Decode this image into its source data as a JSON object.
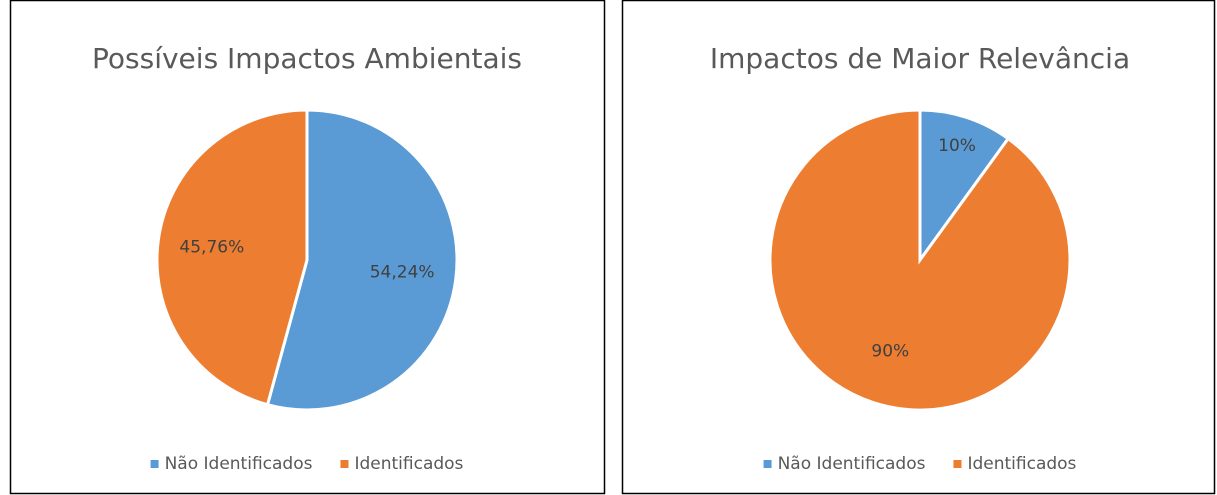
{
  "chart_data": [
    {
      "type": "pie",
      "title": "Possíveis Impactos Ambientais",
      "categories": [
        "Não Identificados",
        "Identificados"
      ],
      "values": [
        54.24,
        45.76
      ],
      "value_labels": [
        "54,24%",
        "45,76%"
      ],
      "colors": [
        "#5b9bd5",
        "#ed7d31"
      ],
      "legend": "bottom"
    },
    {
      "type": "pie",
      "title": "Impactos de Maior Relevância",
      "categories": [
        "Não Identificados",
        "Identificados"
      ],
      "values": [
        10,
        90
      ],
      "value_labels": [
        "10%",
        "90%"
      ],
      "colors": [
        "#5b9bd5",
        "#ed7d31"
      ],
      "legend": "bottom"
    }
  ]
}
